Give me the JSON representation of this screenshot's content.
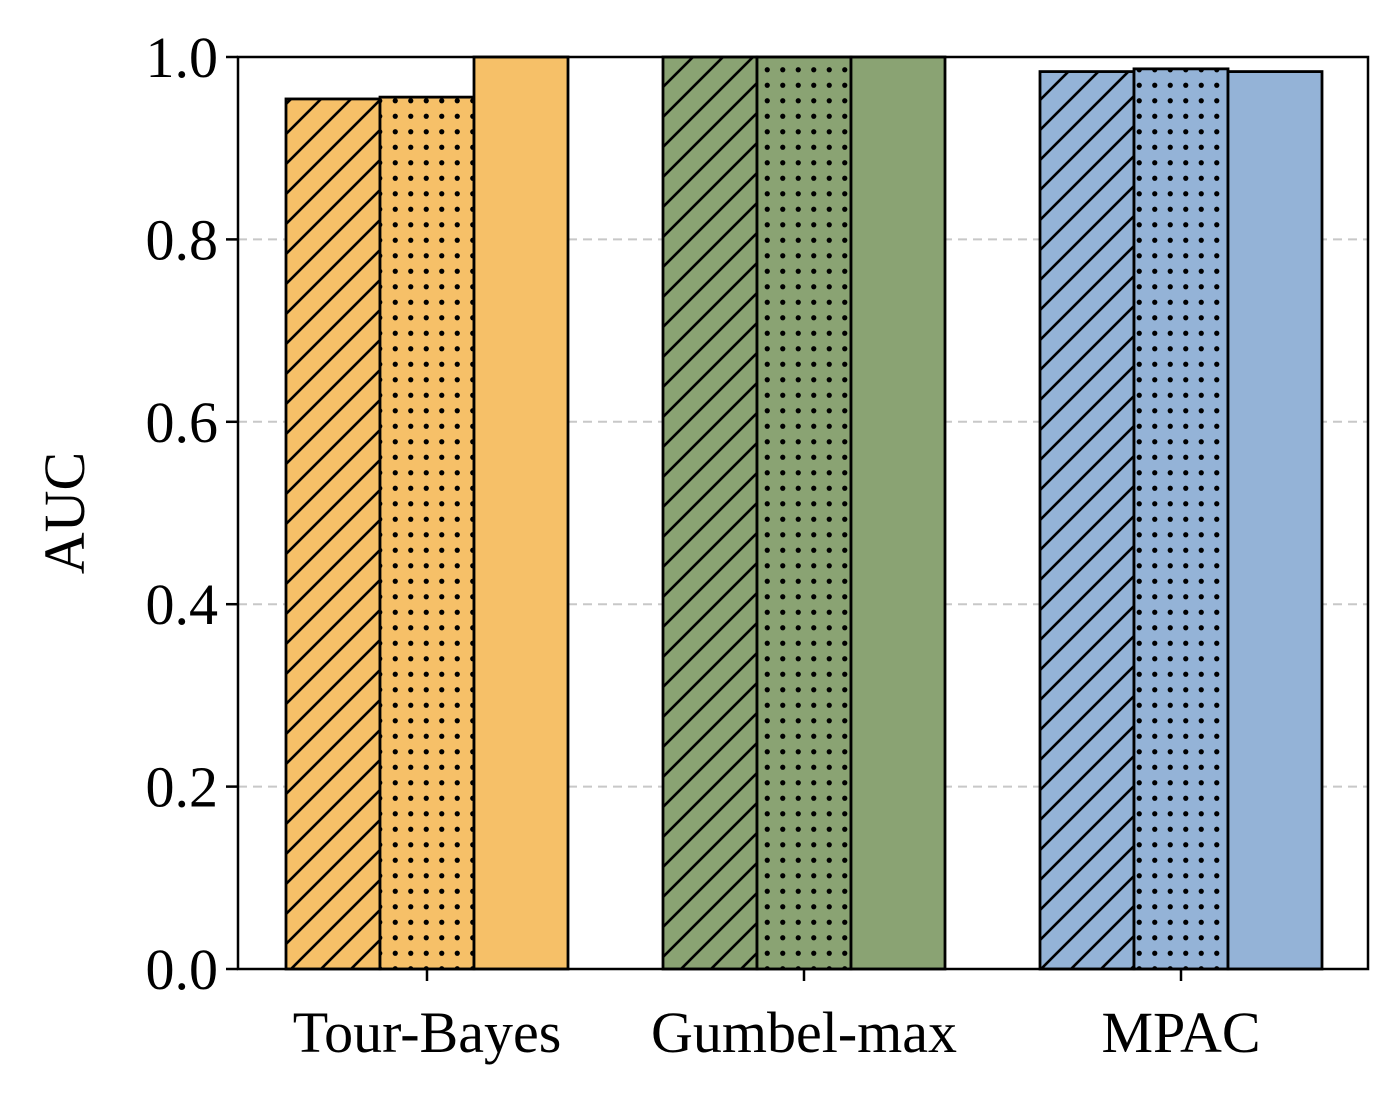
{
  "chart_data": {
    "type": "bar",
    "title": "",
    "xlabel": "",
    "ylabel": "AUC",
    "ylim": [
      0,
      1.0
    ],
    "yticks": [
      "0.0",
      "0.2",
      "0.4",
      "0.6",
      "0.8",
      "1.0"
    ],
    "grid": "horizontal dashed",
    "categories": [
      "Tour-Bayes",
      "Gumbel-max",
      "MPAC"
    ],
    "category_colors": [
      "#f6c068",
      "#8aa373",
      "#94b3d7"
    ],
    "bar_patterns": [
      "hatch-diagonal",
      "dots",
      "solid"
    ],
    "series": [
      {
        "values": [
          0.954,
          1.0,
          0.984
        ]
      },
      {
        "values": [
          0.956,
          1.0,
          0.987
        ]
      },
      {
        "values": [
          1.0,
          1.0,
          0.984
        ]
      }
    ]
  }
}
